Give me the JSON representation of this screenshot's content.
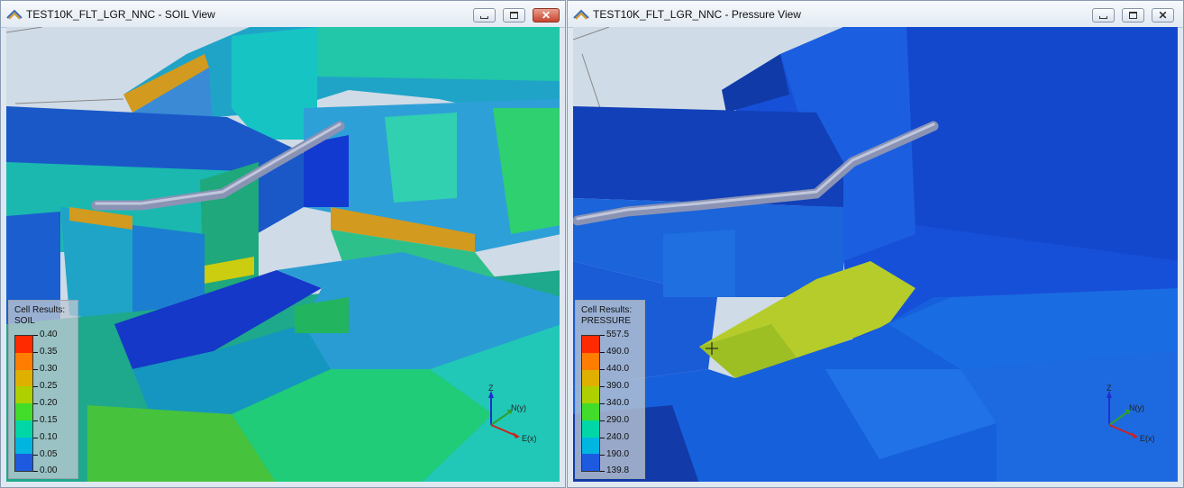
{
  "windows": [
    {
      "id": "left",
      "title": "TEST10K_FLT_LGR_NNC - SOIL View",
      "legend": {
        "title": "Cell Results:",
        "name": "SOIL",
        "ticks": [
          "0.40",
          "0.35",
          "0.30",
          "0.25",
          "0.20",
          "0.15",
          "0.10",
          "0.05",
          "0.00"
        ],
        "colors": [
          "#ff0000",
          "#ff6a00",
          "#e3a300",
          "#c6c800",
          "#6ee000",
          "#00d86e",
          "#00d6d0",
          "#0091e6",
          "#1533d8"
        ]
      },
      "axis": {
        "z": "Z",
        "n": "N(y)",
        "e": "E(x)"
      }
    },
    {
      "id": "right",
      "title": "TEST10K_FLT_LGR_NNC - Pressure View",
      "legend": {
        "title": "Cell Results:",
        "name": "PRESSURE",
        "ticks": [
          "557.5",
          "490.0",
          "440.0",
          "390.0",
          "340.0",
          "290.0",
          "240.0",
          "190.0",
          "139.8"
        ],
        "colors": [
          "#ff0000",
          "#ff6a00",
          "#e3a300",
          "#c6c800",
          "#6ee000",
          "#00d86e",
          "#00d6d0",
          "#0091e6",
          "#1533d8"
        ]
      },
      "axis": {
        "z": "Z",
        "n": "N(y)",
        "e": "E(x)"
      }
    }
  ]
}
